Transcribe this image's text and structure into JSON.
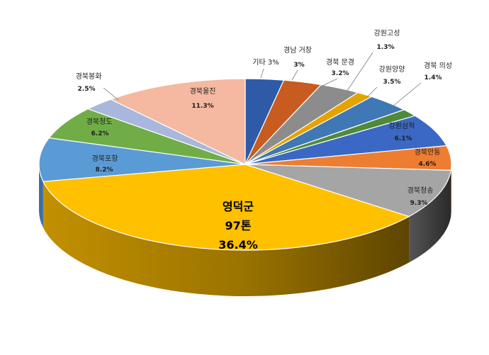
{
  "chart_data": {
    "type": "pie",
    "slices": [
      {
        "label": "기타",
        "value_text": "3%",
        "percent": 3.0,
        "color": "#2e5aa8",
        "side": "#1d3c73"
      },
      {
        "label": "경남 거창",
        "value_text": "3%",
        "percent": 3.0,
        "color": "#c75b20",
        "side": "#8a3f16"
      },
      {
        "label": "경북 문경",
        "value_text": "3.2%",
        "percent": 3.2,
        "color": "#8c8c8c",
        "side": "#5f5f5f"
      },
      {
        "label": "강원고성",
        "value_text": "1.3%",
        "percent": 1.3,
        "color": "#e3a400",
        "side": "#9d7200"
      },
      {
        "label": "강원양양",
        "value_text": "3.5%",
        "percent": 3.5,
        "color": "#3f78b5",
        "side": "#2a527c"
      },
      {
        "label": "경북 의성",
        "value_text": "1.4%",
        "percent": 1.4,
        "color": "#4f8a3a",
        "side": "#365e28"
      },
      {
        "label": "강원삼척",
        "value_text": "6.1%",
        "percent": 6.1,
        "color": "#3a68c4",
        "side": "#264686"
      },
      {
        "label": "경북안동",
        "value_text": "4.6%",
        "percent": 4.6,
        "color": "#ed7d31",
        "side": "#a6561f"
      },
      {
        "label": "경북청송",
        "value_text": "9.3%",
        "percent": 9.3,
        "color": "#a5a5a5",
        "side": "#3c3c3c"
      },
      {
        "label": "영덕군",
        "amount_text": "97톤",
        "value_text": "36.4%",
        "percent": 36.4,
        "color": "#ffc000",
        "side": "#8a6800"
      },
      {
        "label": "경북포항",
        "value_text": "8.2%",
        "percent": 8.2,
        "color": "#5b9bd5",
        "side": "#3d6e9c"
      },
      {
        "label": "경북청도",
        "value_text": "6.2%",
        "percent": 6.2,
        "color": "#70ad47",
        "side": "#4c7a2f"
      },
      {
        "label": "경북봉화",
        "value_text": "2.5%",
        "percent": 2.5,
        "color": "#a9b7dc",
        "side": "#7684a8"
      },
      {
        "label": "경북울진",
        "value_text": "11.3%",
        "percent": 11.3,
        "color": "#f4b9a0",
        "side": "#b88670"
      }
    ]
  }
}
